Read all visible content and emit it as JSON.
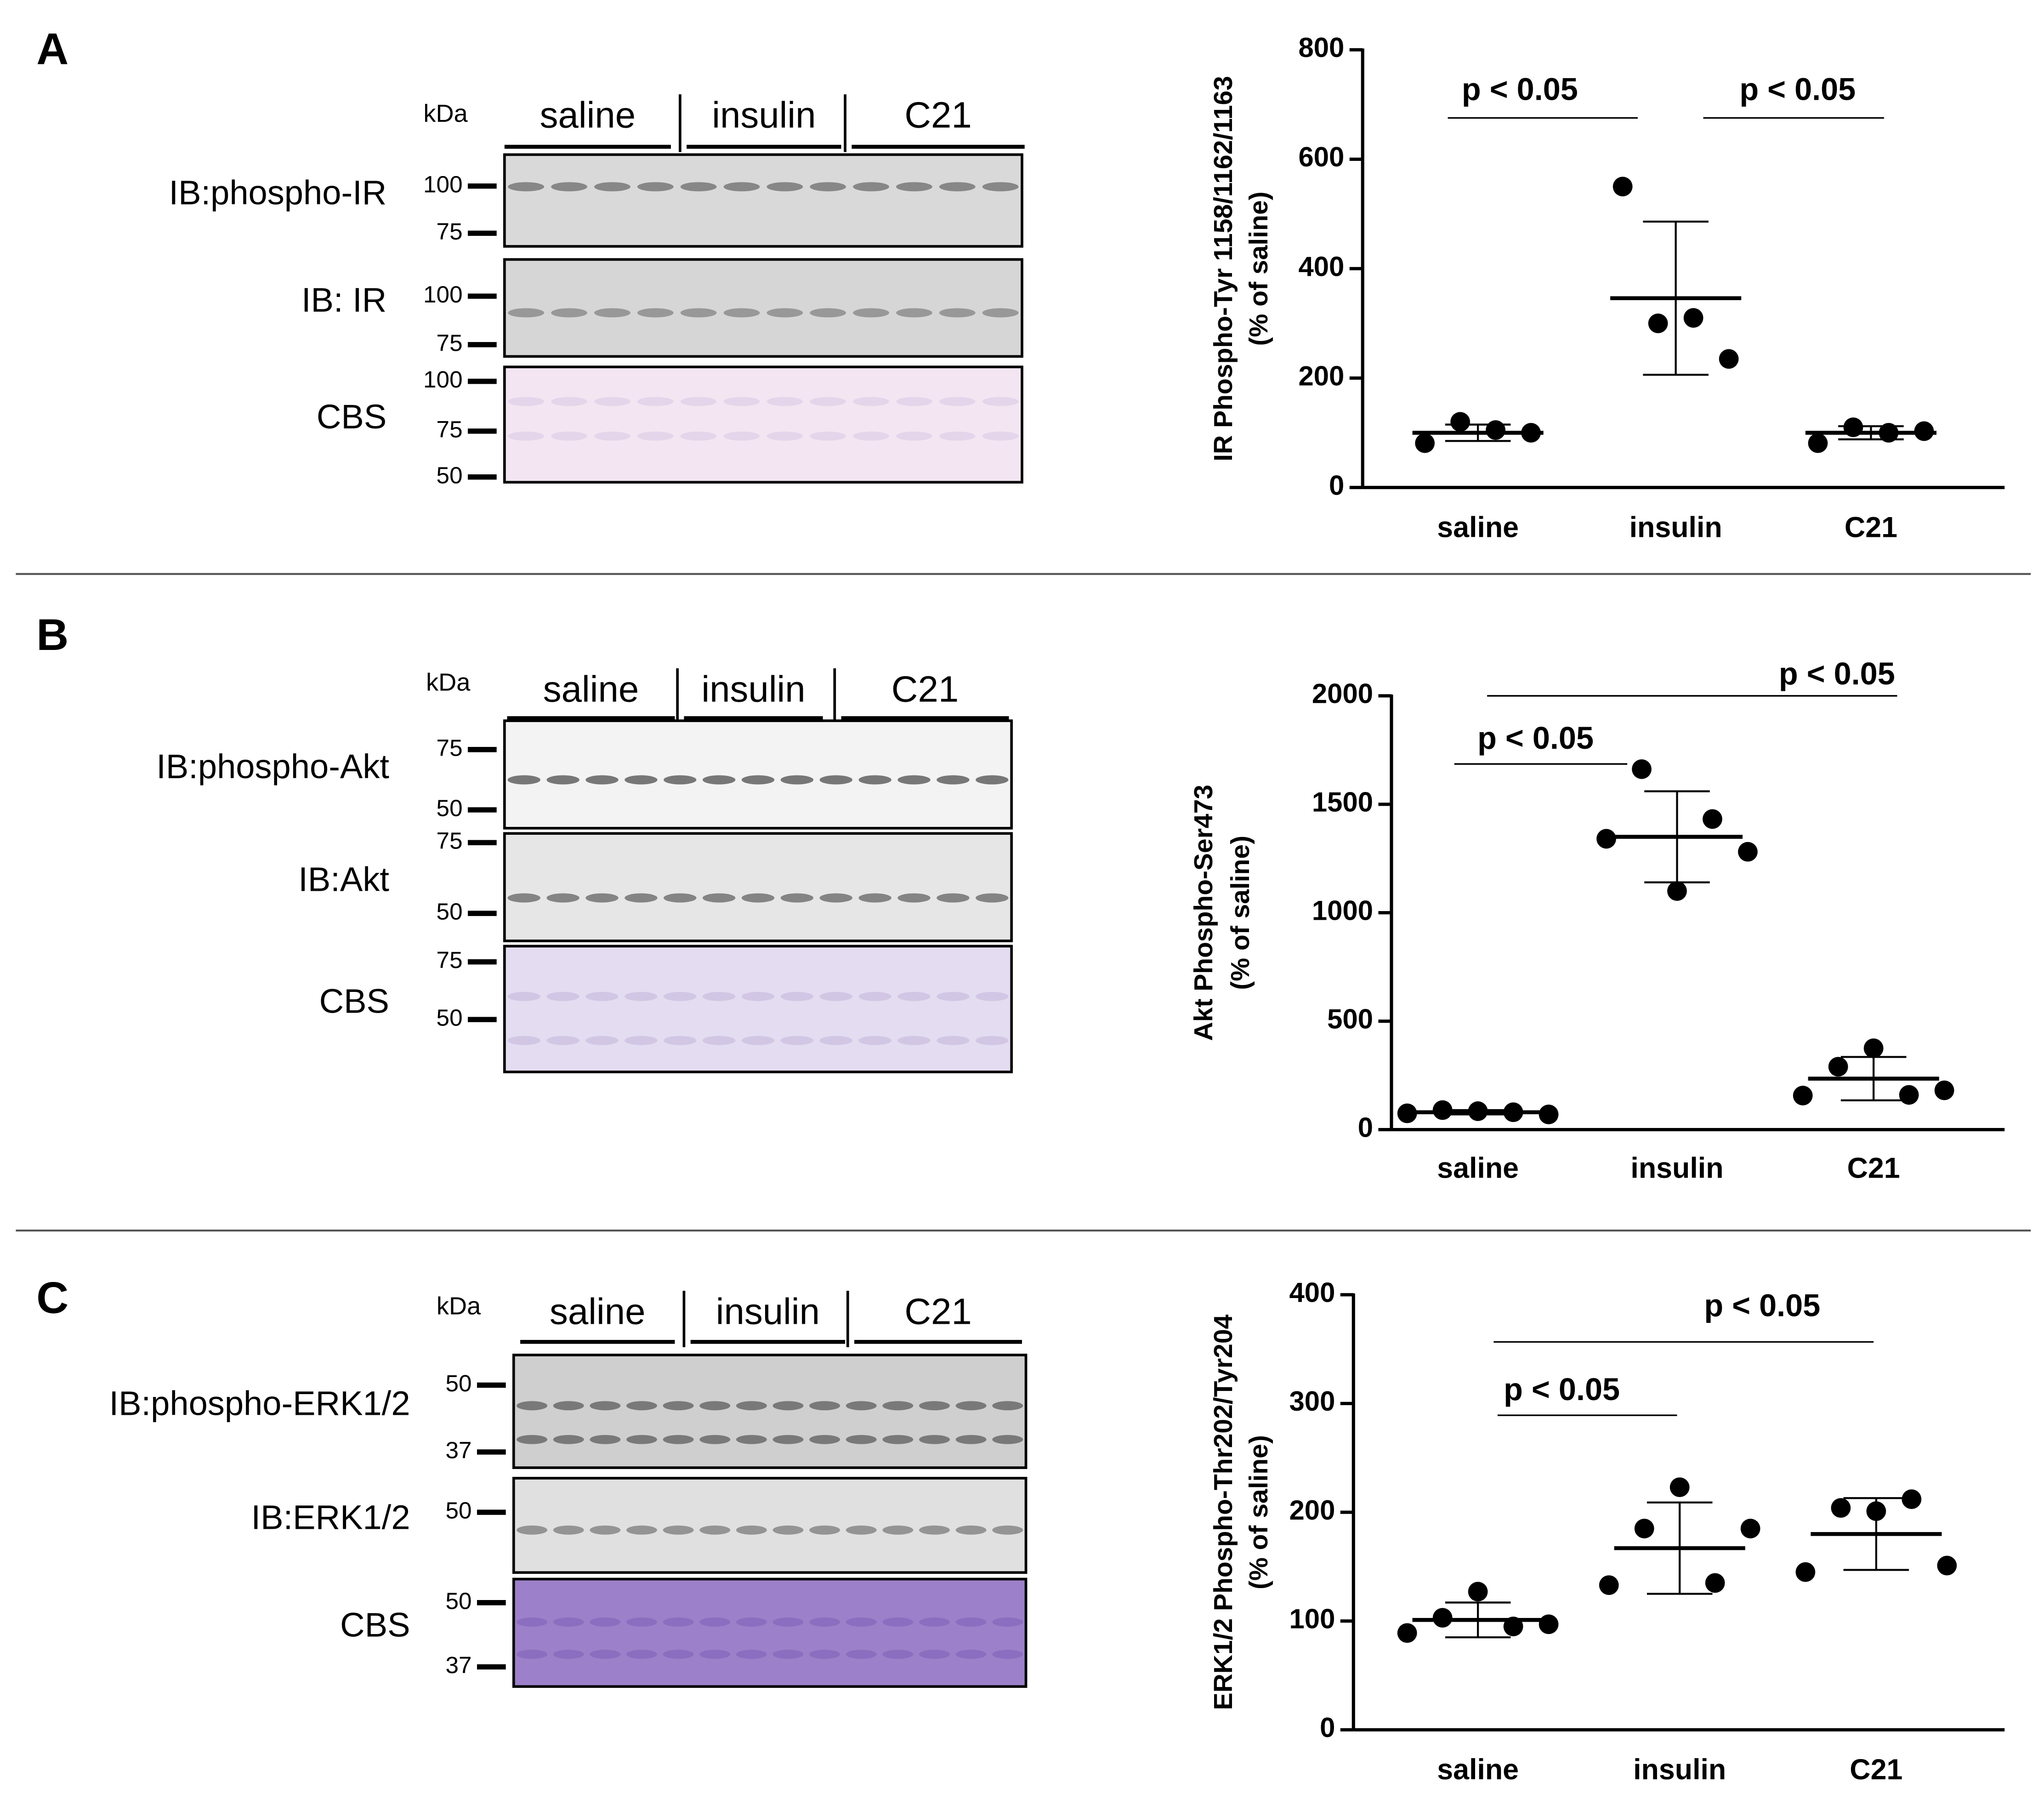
{
  "panels": [
    "A",
    "B",
    "C"
  ],
  "blots": [
    {
      "kda": "kDa",
      "groups": [
        "saline",
        "insulin",
        "C21"
      ],
      "rows": [
        {
          "label": "IB:phospho-IR",
          "markers": [
            "100",
            "75"
          ]
        },
        {
          "label": "IB: IR",
          "markers": [
            "100",
            "75"
          ]
        },
        {
          "label": "CBS",
          "markers": [
            "100",
            "75",
            "50"
          ]
        }
      ]
    },
    {
      "kda": "kDa",
      "groups": [
        "saline",
        "insulin",
        "C21"
      ],
      "rows": [
        {
          "label": "IB:phospho-Akt",
          "markers": [
            "75",
            "50"
          ]
        },
        {
          "label": "IB:Akt",
          "markers": [
            "75",
            "50"
          ]
        },
        {
          "label": "CBS",
          "markers": [
            "75",
            "50"
          ]
        }
      ]
    },
    {
      "kda": "kDa",
      "groups": [
        "saline",
        "insulin",
        "C21"
      ],
      "rows": [
        {
          "label": "IB:phospho-ERK1/2",
          "markers": [
            "50",
            "37"
          ]
        },
        {
          "label": "IB:ERK1/2",
          "markers": [
            "50"
          ]
        },
        {
          "label": "CBS",
          "markers": [
            "50",
            "37"
          ]
        }
      ]
    }
  ],
  "chart_data": [
    {
      "type": "dotplot",
      "ylabel": [
        "IR Phospho-Tyr 1158/1162/1163",
        "(% of saline)"
      ],
      "categories": [
        "saline",
        "insulin",
        "C21"
      ],
      "points": [
        [
          81,
          120,
          105,
          100
        ],
        [
          550,
          300,
          310,
          235
        ],
        [
          81,
          110,
          100,
          103
        ]
      ],
      "means": [
        100,
        346,
        100
      ],
      "errors": [
        15,
        140,
        12
      ],
      "color": "#000000",
      "ylim": [
        0,
        800
      ],
      "yticks": [
        0,
        200,
        400,
        600,
        800
      ],
      "annotations": [
        "p < 0.05",
        "p < 0.05"
      ]
    },
    {
      "type": "dotplot",
      "ylabel": [
        "Akt Phospho-Ser473",
        "(% of saline)"
      ],
      "categories": [
        "saline",
        "insulin",
        "C21"
      ],
      "points": [
        [
          75,
          90,
          85,
          80,
          70
        ],
        [
          1341,
          1662,
          1100,
          1432,
          1281
        ],
        [
          157,
          290,
          375,
          160,
          181
        ]
      ],
      "means": [
        80,
        1350,
        235
      ],
      "errors": [
        10,
        210,
        100
      ],
      "color": "#000000",
      "ylim": [
        0,
        2000
      ],
      "yticks": [
        0,
        500,
        1000,
        1500,
        2000
      ],
      "annotations": [
        "p < 0.05",
        "p < 0.05"
      ]
    },
    {
      "type": "dotplot",
      "ylabel": [
        "ERK1/2 Phospho-Thr202/Tyr204",
        "(% of saline)"
      ],
      "categories": [
        "saline",
        "insulin",
        "C21"
      ],
      "points": [
        [
          89,
          103,
          127,
          95,
          97
        ],
        [
          133,
          185,
          223,
          135,
          185
        ],
        [
          145,
          204,
          201,
          212,
          151
        ]
      ],
      "means": [
        101,
        167,
        180
      ],
      "errors": [
        16,
        42,
        33
      ],
      "color": "#000000",
      "ylim": [
        0,
        400
      ],
      "yticks": [
        0,
        100,
        200,
        300,
        400
      ],
      "annotations": [
        "p < 0.05",
        "p < 0.05"
      ]
    }
  ]
}
